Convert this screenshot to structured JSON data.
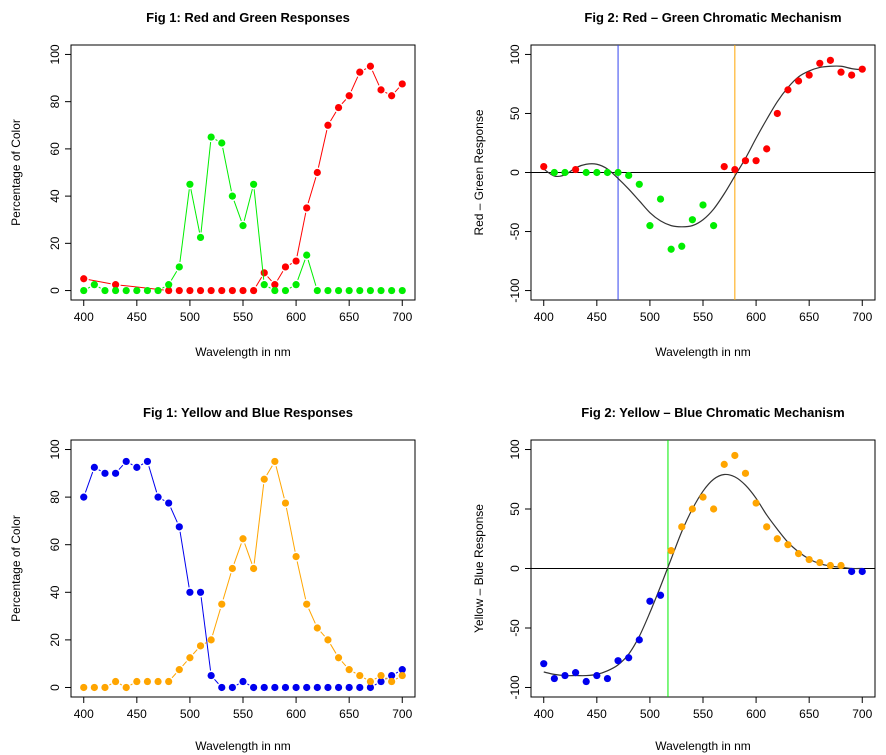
{
  "chart_data": [
    {
      "type": "line",
      "title": "Fig 1: Red and Green Responses",
      "xlabel": "Wavelength in nm",
      "ylabel": "Percentage of Color",
      "xlim": [
        400,
        700
      ],
      "ylim": [
        0,
        100
      ],
      "xticks": [
        400,
        450,
        500,
        550,
        600,
        650,
        700
      ],
      "yticks": [
        0,
        20,
        40,
        60,
        80,
        100
      ],
      "x": [
        400,
        410,
        420,
        430,
        440,
        450,
        460,
        470,
        480,
        490,
        500,
        510,
        520,
        530,
        540,
        550,
        560,
        570,
        580,
        590,
        600,
        610,
        620,
        630,
        640,
        650,
        660,
        670,
        680,
        690,
        700
      ],
      "series": [
        {
          "color": "#ff0000",
          "values": [
            5,
            null,
            null,
            2.5,
            null,
            null,
            null,
            null,
            0,
            0,
            0,
            0,
            0,
            0,
            0,
            0,
            0,
            7.5,
            2.5,
            10,
            12.5,
            35,
            50,
            70,
            77.5,
            82.5,
            92.5,
            95,
            85,
            82.5,
            87.5
          ]
        },
        {
          "color": "#00ee00",
          "values": [
            0,
            2.5,
            0,
            0,
            0,
            0,
            0,
            0,
            2.5,
            10,
            45,
            22.5,
            65,
            62.5,
            40,
            27.5,
            45,
            2.5,
            0,
            0,
            2.5,
            15,
            0,
            0,
            0,
            0,
            0,
            0,
            0,
            0,
            0
          ]
        }
      ],
      "vlines": [],
      "hline": null,
      "curve": null
    },
    {
      "type": "line",
      "title": "Fig 2: Red – Green Chromatic Mechanism",
      "xlabel": "Wavelength in nm",
      "ylabel": "Red – Green Response",
      "xlim": [
        400,
        700
      ],
      "ylim": [
        -100,
        100
      ],
      "xticks": [
        400,
        450,
        500,
        550,
        600,
        650,
        700
      ],
      "yticks": [
        -100,
        -50,
        0,
        50,
        100
      ],
      "x": [
        400,
        410,
        420,
        430,
        440,
        450,
        460,
        470,
        480,
        490,
        500,
        510,
        520,
        530,
        540,
        550,
        560,
        570,
        580,
        590,
        600,
        610,
        620,
        630,
        640,
        650,
        660,
        670,
        680,
        690,
        700
      ],
      "series": [
        {
          "color": "#ff0000",
          "points_only": true,
          "values": [
            5,
            null,
            null,
            2.5,
            null,
            null,
            null,
            null,
            null,
            null,
            null,
            null,
            null,
            null,
            null,
            null,
            null,
            5,
            2.5,
            10,
            10,
            20,
            50,
            70,
            77.5,
            82.5,
            92.5,
            95,
            85,
            82.5,
            87.5
          ]
        },
        {
          "color": "#00ee00",
          "points_only": true,
          "values": [
            null,
            0,
            0,
            null,
            0,
            0,
            0,
            0,
            -2.5,
            -10,
            -45,
            -22.5,
            -65,
            -62.5,
            -40,
            -27.5,
            -45,
            null,
            null,
            null,
            null,
            null,
            null,
            null,
            null,
            null,
            null,
            null,
            null,
            null,
            null
          ]
        }
      ],
      "vlines": [
        {
          "x": 470,
          "color": "#3344ee"
        },
        {
          "x": 580,
          "color": "#ffa500"
        }
      ],
      "hline": 0,
      "curve": {
        "color": "#333333",
        "x": [
          400,
          410,
          420,
          430,
          440,
          450,
          460,
          470,
          480,
          490,
          500,
          510,
          520,
          530,
          540,
          550,
          560,
          570,
          580,
          590,
          600,
          610,
          620,
          630,
          640,
          650,
          660,
          670,
          680,
          690,
          700
        ],
        "y": [
          3,
          -3,
          -2,
          4,
          7,
          7,
          3,
          -5,
          -14,
          -24,
          -34,
          -41,
          -45,
          -46,
          -45,
          -40,
          -31,
          -18,
          -3,
          12,
          29,
          45,
          60,
          72,
          81,
          86,
          89,
          90,
          90,
          88,
          87
        ]
      }
    },
    {
      "type": "line",
      "title": "Fig 1: Yellow and Blue Responses",
      "xlabel": "Wavelength in nm",
      "ylabel": "Percentage of Color",
      "xlim": [
        400,
        700
      ],
      "ylim": [
        0,
        100
      ],
      "xticks": [
        400,
        450,
        500,
        550,
        600,
        650,
        700
      ],
      "yticks": [
        0,
        20,
        40,
        60,
        80,
        100
      ],
      "x": [
        400,
        410,
        420,
        430,
        440,
        450,
        460,
        470,
        480,
        490,
        500,
        510,
        520,
        530,
        540,
        550,
        560,
        570,
        580,
        590,
        600,
        610,
        620,
        630,
        640,
        650,
        660,
        670,
        680,
        690,
        700
      ],
      "series": [
        {
          "color": "#0000ee",
          "values": [
            80,
            92.5,
            90,
            90,
            95,
            92.5,
            95,
            80,
            77.5,
            67.5,
            40,
            40,
            5,
            0,
            0,
            2.5,
            0,
            0,
            0,
            0,
            0,
            0,
            0,
            0,
            0,
            0,
            0,
            0,
            2.5,
            5,
            7.5
          ]
        },
        {
          "color": "#ffa500",
          "values": [
            0,
            0,
            0,
            2.5,
            0,
            2.5,
            2.5,
            2.5,
            2.5,
            7.5,
            12.5,
            17.5,
            20,
            35,
            50,
            62.5,
            50,
            87.5,
            95,
            77.5,
            55,
            35,
            25,
            20,
            12.5,
            7.5,
            5,
            2.5,
            5,
            2.5,
            5
          ]
        }
      ],
      "vlines": [],
      "hline": null,
      "curve": null
    },
    {
      "type": "line",
      "title": "Fig 2: Yellow – Blue Chromatic Mechanism",
      "xlabel": "Wavelength in nm",
      "ylabel": "Yellow – Blue Response",
      "xlim": [
        400,
        700
      ],
      "ylim": [
        -100,
        100
      ],
      "xticks": [
        400,
        450,
        500,
        550,
        600,
        650,
        700
      ],
      "yticks": [
        -100,
        -50,
        0,
        50,
        100
      ],
      "x": [
        400,
        410,
        420,
        430,
        440,
        450,
        460,
        470,
        480,
        490,
        500,
        510,
        520,
        530,
        540,
        550,
        560,
        570,
        580,
        590,
        600,
        610,
        620,
        630,
        640,
        650,
        660,
        670,
        680,
        690,
        700
      ],
      "series": [
        {
          "color": "#0000ee",
          "points_only": true,
          "values": [
            -80,
            -92.5,
            -90,
            -87.5,
            -95,
            -90,
            -92.5,
            -77.5,
            -75,
            -60,
            -27.5,
            -22.5,
            null,
            null,
            null,
            null,
            null,
            null,
            null,
            null,
            null,
            null,
            null,
            null,
            null,
            null,
            null,
            null,
            null,
            -2.5,
            -2.5
          ]
        },
        {
          "color": "#ffa500",
          "points_only": true,
          "values": [
            null,
            null,
            null,
            null,
            null,
            null,
            null,
            null,
            null,
            null,
            null,
            null,
            15,
            35,
            50,
            60,
            50,
            87.5,
            95,
            80,
            55,
            35,
            25,
            20,
            12.5,
            7.5,
            5,
            2.5,
            2.5,
            null,
            null
          ]
        }
      ],
      "vlines": [
        {
          "x": 517,
          "color": "#00ee00"
        }
      ],
      "hline": 0,
      "curve": {
        "color": "#333333",
        "x": [
          400,
          410,
          420,
          430,
          440,
          450,
          460,
          470,
          480,
          490,
          500,
          510,
          520,
          530,
          540,
          550,
          560,
          570,
          580,
          590,
          600,
          610,
          620,
          630,
          640,
          650,
          660,
          670,
          680,
          690,
          700
        ],
        "y": [
          -87,
          -89,
          -90,
          -90,
          -90,
          -89,
          -86,
          -81,
          -72,
          -57,
          -37,
          -15,
          8,
          31,
          50,
          65,
          75,
          79,
          77,
          70,
          59,
          45,
          33,
          22,
          14,
          8,
          4,
          2,
          1,
          0,
          0
        ]
      }
    }
  ]
}
